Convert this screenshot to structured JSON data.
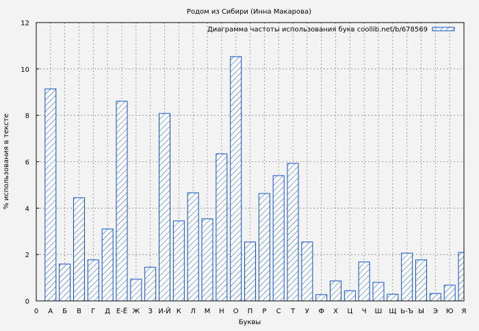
{
  "chart_data": {
    "type": "bar",
    "title": "Родом из Сибири (Инна Макарова)",
    "xlabel": "Буквы",
    "ylabel": "% использования в тексте",
    "legend": {
      "label": "Диаграмма частоты использования букв coollib.net/b/678569",
      "placement": "top-right"
    },
    "x_origin_label": "0",
    "categories": [
      "А",
      "Б",
      "В",
      "Г",
      "Д",
      "Е-Ё",
      "Ж",
      "З",
      "И-Й",
      "К",
      "Л",
      "М",
      "Н",
      "О",
      "П",
      "Р",
      "С",
      "Т",
      "У",
      "Ф",
      "Х",
      "Ц",
      "Ч",
      "Ш",
      "Щ",
      "Ь-Ъ",
      "Ы",
      "Э",
      "Ю",
      "Я"
    ],
    "values": [
      9.14,
      1.59,
      4.45,
      1.77,
      3.1,
      8.61,
      0.94,
      1.45,
      8.08,
      3.45,
      4.66,
      3.54,
      6.34,
      10.53,
      2.54,
      4.63,
      5.4,
      5.93,
      2.54,
      0.27,
      0.86,
      0.44,
      1.68,
      0.8,
      0.29,
      2.06,
      1.77,
      0.32,
      0.68,
      2.09
    ],
    "ylim": [
      0,
      12
    ],
    "yticks": [
      0,
      2,
      4,
      6,
      8,
      10,
      12
    ],
    "grid": true,
    "colors": {
      "bar": "#0a4fc8",
      "background": "#f3f3f3",
      "grid": "#888888"
    }
  }
}
